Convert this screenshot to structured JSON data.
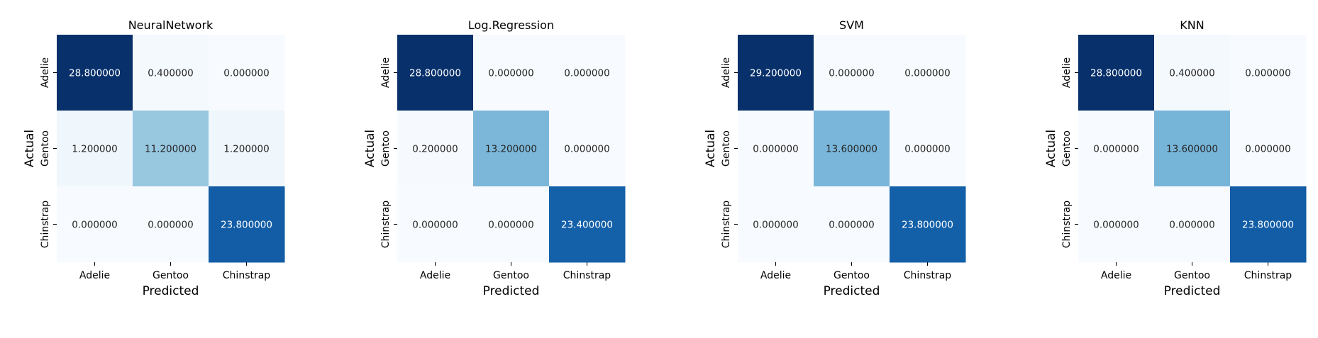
{
  "figure": {
    "xlabel": "Predicted",
    "ylabel": "Actual",
    "class_labels": [
      "Adelie",
      "Gentoo",
      "Chinstrap"
    ],
    "colormap": "Blues",
    "colormap_stops": [
      "#f7fbff",
      "#deebf7",
      "#c6dbef",
      "#9ecae1",
      "#6baed6",
      "#4292c6",
      "#2171b5",
      "#08519c",
      "#08306b"
    ],
    "dark_text_color": "#262626",
    "light_text_color": "#ffffff"
  },
  "chart_data": [
    {
      "type": "heatmap",
      "title": "NeuralNetwork",
      "xlabel": "Predicted",
      "ylabel": "Actual",
      "x_categories": [
        "Adelie",
        "Gentoo",
        "Chinstrap"
      ],
      "y_categories": [
        "Adelie",
        "Gentoo",
        "Chinstrap"
      ],
      "values": [
        [
          28.8,
          0.4,
          0.0
        ],
        [
          1.2,
          11.2,
          1.2
        ],
        [
          0.0,
          0.0,
          23.8
        ]
      ],
      "labels": [
        [
          "28.800000",
          "0.400000",
          "0.000000"
        ],
        [
          "1.200000",
          "11.200000",
          "1.200000"
        ],
        [
          "0.000000",
          "0.000000",
          "23.800000"
        ]
      ]
    },
    {
      "type": "heatmap",
      "title": "Log.Regression",
      "xlabel": "Predicted",
      "ylabel": "Actual",
      "x_categories": [
        "Adelie",
        "Gentoo",
        "Chinstrap"
      ],
      "y_categories": [
        "Adelie",
        "Gentoo",
        "Chinstrap"
      ],
      "values": [
        [
          28.8,
          0.0,
          0.0
        ],
        [
          0.2,
          13.2,
          0.0
        ],
        [
          0.0,
          0.0,
          23.4
        ]
      ],
      "labels": [
        [
          "28.800000",
          "0.000000",
          "0.000000"
        ],
        [
          "0.200000",
          "13.200000",
          "0.000000"
        ],
        [
          "0.000000",
          "0.000000",
          "23.400000"
        ]
      ]
    },
    {
      "type": "heatmap",
      "title": "SVM",
      "xlabel": "Predicted",
      "ylabel": "Actual",
      "x_categories": [
        "Adelie",
        "Gentoo",
        "Chinstrap"
      ],
      "y_categories": [
        "Adelie",
        "Gentoo",
        "Chinstrap"
      ],
      "values": [
        [
          29.2,
          0.0,
          0.0
        ],
        [
          0.0,
          13.6,
          0.0
        ],
        [
          0.0,
          0.0,
          23.8
        ]
      ],
      "labels": [
        [
          "29.200000",
          "0.000000",
          "0.000000"
        ],
        [
          "0.000000",
          "13.600000",
          "0.000000"
        ],
        [
          "0.000000",
          "0.000000",
          "23.800000"
        ]
      ]
    },
    {
      "type": "heatmap",
      "title": "KNN",
      "xlabel": "Predicted",
      "ylabel": "Actual",
      "x_categories": [
        "Adelie",
        "Gentoo",
        "Chinstrap"
      ],
      "y_categories": [
        "Adelie",
        "Gentoo",
        "Chinstrap"
      ],
      "values": [
        [
          28.8,
          0.4,
          0.0
        ],
        [
          0.0,
          13.6,
          0.0
        ],
        [
          0.0,
          0.0,
          23.8
        ]
      ],
      "labels": [
        [
          "28.800000",
          "0.400000",
          "0.000000"
        ],
        [
          "0.000000",
          "13.600000",
          "0.000000"
        ],
        [
          "0.000000",
          "0.000000",
          "23.800000"
        ]
      ]
    }
  ]
}
